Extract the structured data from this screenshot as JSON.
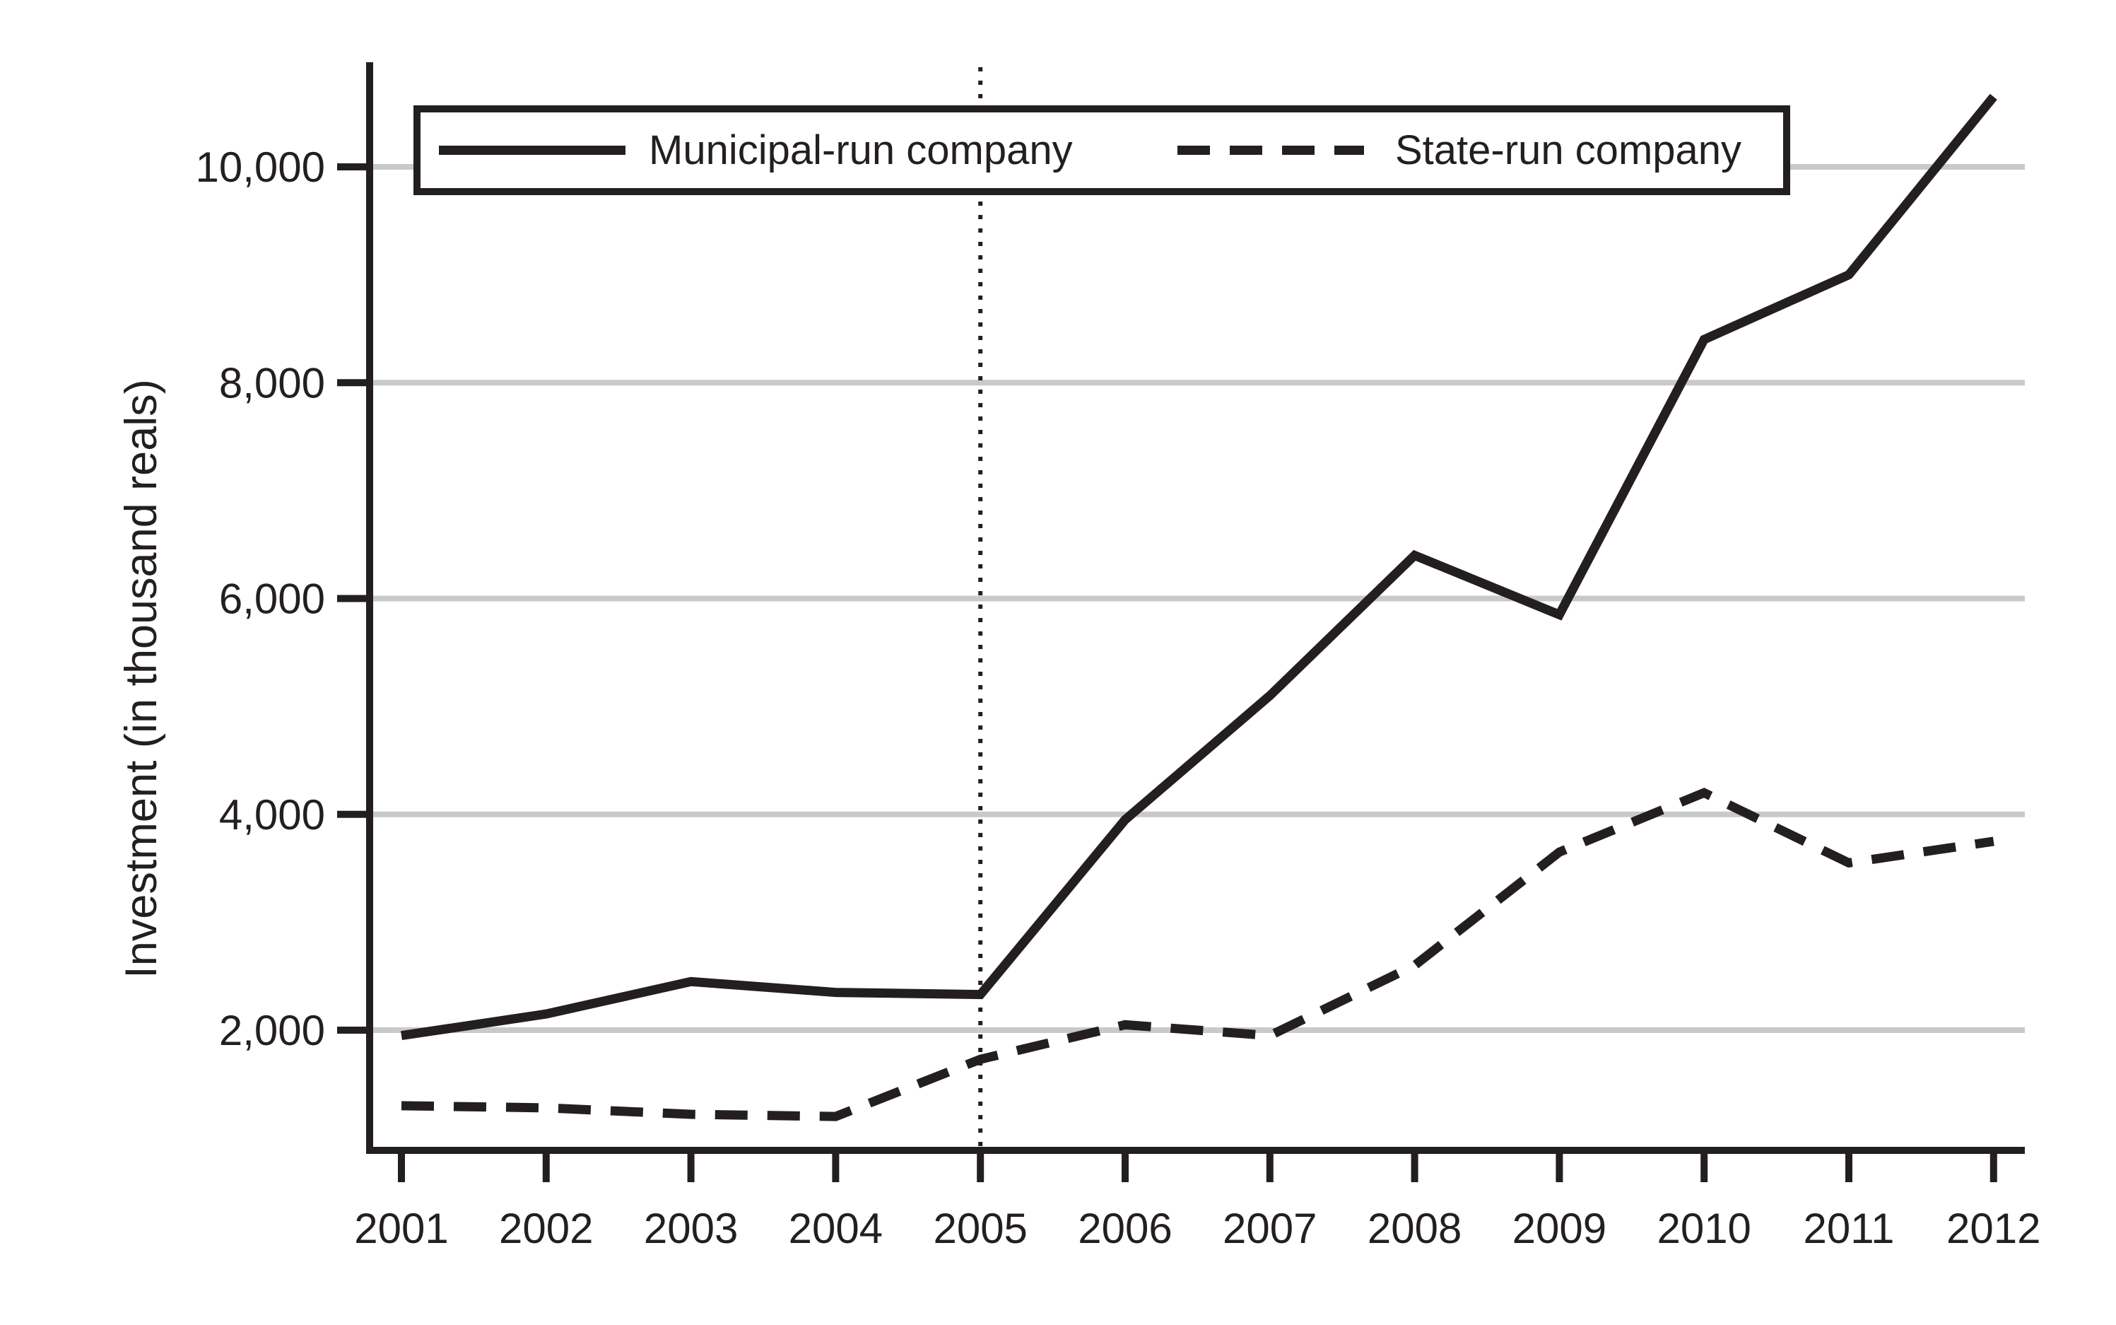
{
  "chart_data": {
    "type": "line",
    "title": "",
    "xlabel": "",
    "ylabel": "Investment (in thousand reals)",
    "categories": [
      "2001",
      "2002",
      "2003",
      "2004",
      "2005",
      "2006",
      "2007",
      "2008",
      "2009",
      "2010",
      "2011",
      "2012"
    ],
    "series": [
      {
        "name": "Municipal-run company",
        "line_style": "solid",
        "values": [
          1950,
          2150,
          2450,
          2350,
          2330,
          3950,
          5100,
          6400,
          5850,
          8400,
          9000,
          10650
        ]
      },
      {
        "name": "State-run company",
        "line_style": "dashed",
        "values": [
          1300,
          1280,
          1220,
          1200,
          1730,
          2050,
          1950,
          2600,
          3650,
          4200,
          3550,
          3750
        ]
      }
    ],
    "y_ticks": [
      {
        "value": 2000,
        "label": "2,000"
      },
      {
        "value": 4000,
        "label": "4,000"
      },
      {
        "value": 6000,
        "label": "6,000"
      },
      {
        "value": 8000,
        "label": "8,000"
      },
      {
        "value": 10000,
        "label": "10,000"
      }
    ],
    "ylim": [
      900,
      11000
    ],
    "grid": "horizontal",
    "legend_position": "top-inside",
    "annotations": [
      {
        "type": "vertical-dotted-line",
        "x_category": "2005"
      }
    ]
  },
  "colors": {
    "ink": "#231f20",
    "grid": "#c8c9ca",
    "background": "#ffffff"
  }
}
